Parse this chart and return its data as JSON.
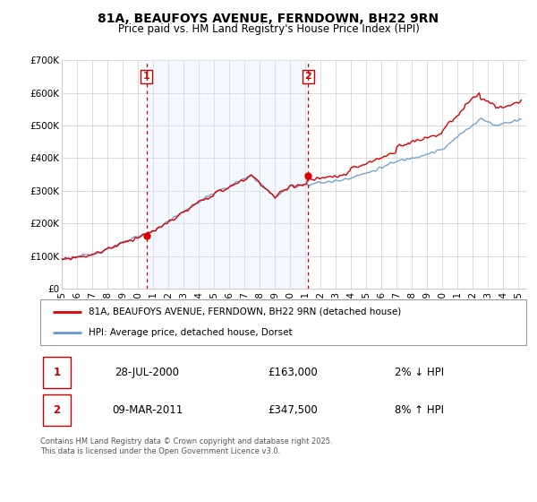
{
  "title": "81A, BEAUFOYS AVENUE, FERNDOWN, BH22 9RN",
  "subtitle": "Price paid vs. HM Land Registry's House Price Index (HPI)",
  "property_label": "81A, BEAUFOYS AVENUE, FERNDOWN, BH22 9RN (detached house)",
  "hpi_label": "HPI: Average price, detached house, Dorset",
  "footer": "Contains HM Land Registry data © Crown copyright and database right 2025.\nThis data is licensed under the Open Government Licence v3.0.",
  "sale1_label": "1",
  "sale1_date": "28-JUL-2000",
  "sale1_price": "£163,000",
  "sale1_hpi": "2% ↓ HPI",
  "sale2_label": "2",
  "sale2_date": "09-MAR-2011",
  "sale2_price": "£347,500",
  "sale2_hpi": "8% ↑ HPI",
  "sale1_x": 2000.57,
  "sale1_y": 163000,
  "sale2_x": 2011.19,
  "sale2_y": 347500,
  "vline1_x": 2000.57,
  "vline2_x": 2011.19,
  "shade_xmin": 2000.57,
  "shade_xmax": 2011.19,
  "xlim": [
    1995.0,
    2025.5
  ],
  "ylim": [
    0,
    700000
  ],
  "yticks": [
    0,
    100000,
    200000,
    300000,
    400000,
    500000,
    600000,
    700000
  ],
  "ytick_labels": [
    "£0",
    "£100K",
    "£200K",
    "£300K",
    "£400K",
    "£500K",
    "£600K",
    "£700K"
  ],
  "xticks": [
    1995,
    1996,
    1997,
    1998,
    1999,
    2000,
    2001,
    2002,
    2003,
    2004,
    2005,
    2006,
    2007,
    2008,
    2009,
    2010,
    2011,
    2012,
    2013,
    2014,
    2015,
    2016,
    2017,
    2018,
    2019,
    2020,
    2021,
    2022,
    2023,
    2024,
    2025
  ],
  "property_color": "#dd0000",
  "hpi_color": "#6699cc",
  "shade_color": "#ddeeff",
  "vline_color": "#cc0000",
  "bg_color": "#ffffff",
  "grid_color": "#cccccc",
  "annotation_box_color": "#cc0000",
  "title_fontsize": 10,
  "subtitle_fontsize": 8.5
}
